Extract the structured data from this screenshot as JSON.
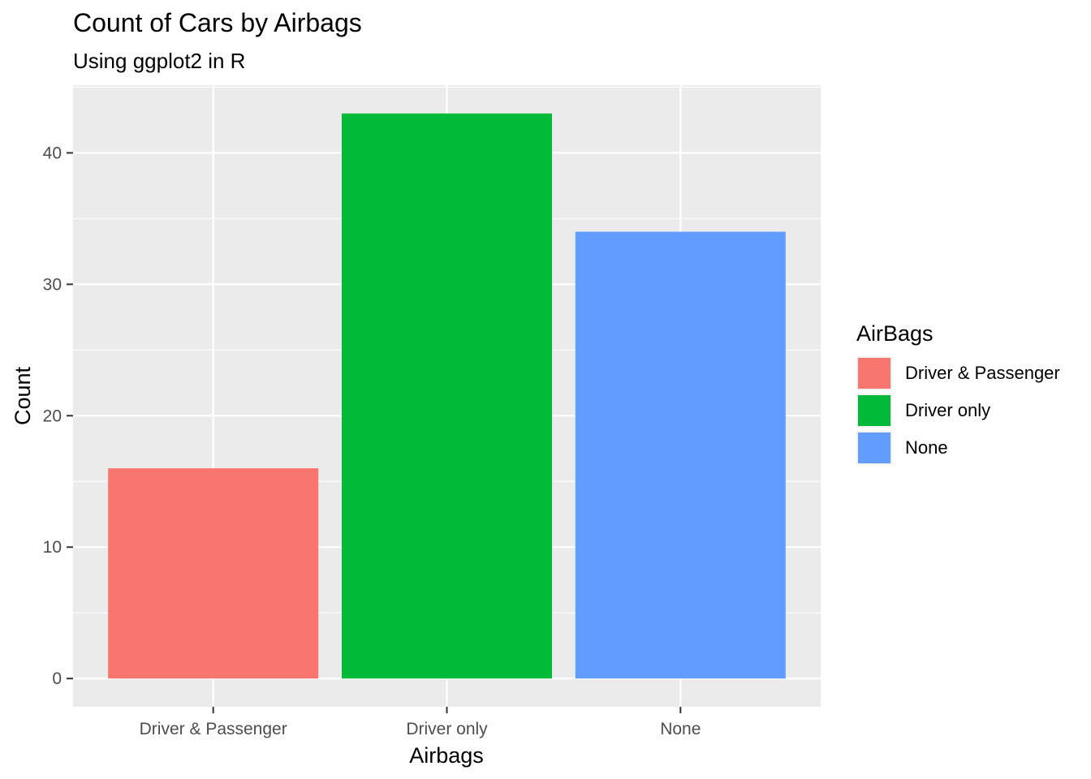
{
  "chart_data": {
    "type": "bar",
    "title": "Count of Cars by Airbags",
    "subtitle": "Using ggplot2 in R",
    "xlabel": "Airbags",
    "ylabel": "Count",
    "categories": [
      "Driver & Passenger",
      "Driver only",
      "None"
    ],
    "values": [
      16,
      43,
      34
    ],
    "colors": [
      "#F8766D",
      "#00BA38",
      "#619CFF"
    ],
    "ylim": [
      0,
      45
    ],
    "yticks": [
      0,
      10,
      20,
      30,
      40
    ],
    "grid": true,
    "legend": {
      "title": "AirBags",
      "position": "right",
      "entries": [
        "Driver & Passenger",
        "Driver only",
        "None"
      ]
    }
  }
}
